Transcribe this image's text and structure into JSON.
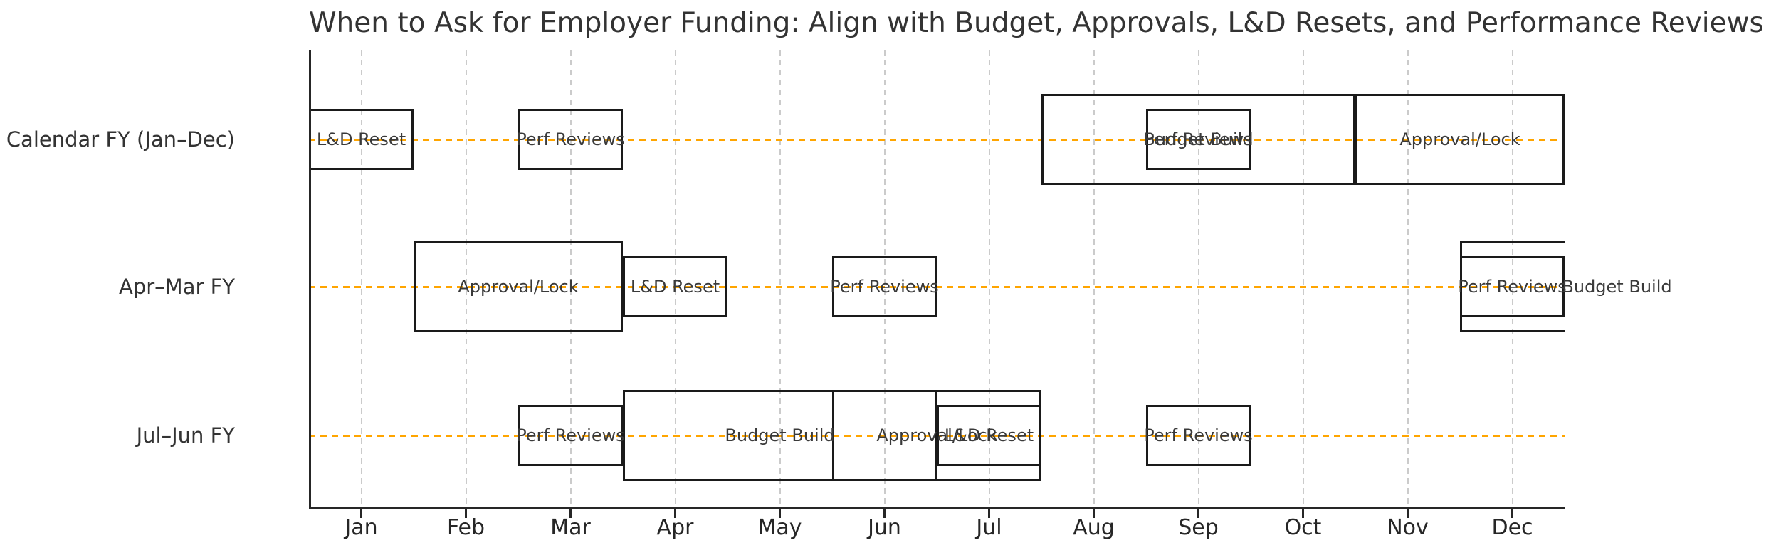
{
  "chart_data": {
    "type": "bar",
    "subtype": "gantt-timeline",
    "title": "When to Ask for Employer Funding: Align with Budget, Approvals, L&D Resets, and Performance Reviews",
    "xlim": [
      0,
      12
    ],
    "x_tick_labels": [
      "Jan",
      "Feb",
      "Mar",
      "Apr",
      "May",
      "Jun",
      "Jul",
      "Aug",
      "Sep",
      "Oct",
      "Nov",
      "Dec"
    ],
    "grid": "vertical dashed line at each month center",
    "row_guides": "horizontal orange dashed line across each row",
    "legend": "none",
    "rows": [
      {
        "label": "Calendar FY (Jan–Dec)",
        "bars": [
          {
            "label": "L&D Reset",
            "start_month": 0,
            "end_month": 1,
            "size": "small"
          },
          {
            "label": "Perf Reviews",
            "start_month": 2,
            "end_month": 3,
            "size": "small"
          },
          {
            "label": "Budget Build",
            "start_month": 7,
            "end_month": 10,
            "size": "large"
          },
          {
            "label": "Perf Reviews",
            "start_month": 8,
            "end_month": 9,
            "size": "small"
          },
          {
            "label": "Approval/Lock",
            "start_month": 10,
            "end_month": 12,
            "size": "large"
          }
        ]
      },
      {
        "label": "Apr–Mar FY",
        "bars": [
          {
            "label": "Approval/Lock",
            "start_month": 1,
            "end_month": 3,
            "size": "large"
          },
          {
            "label": "L&D Reset",
            "start_month": 3,
            "end_month": 4,
            "size": "small"
          },
          {
            "label": "Perf Reviews",
            "start_month": 5,
            "end_month": 6,
            "size": "small"
          },
          {
            "label": "Budget Build",
            "start_month": 11,
            "end_month": 14,
            "size": "large",
            "clipped": true
          },
          {
            "label": "Perf Reviews",
            "start_month": 11,
            "end_month": 12,
            "size": "small"
          }
        ]
      },
      {
        "label": "Jul–Jun FY",
        "bars": [
          {
            "label": "Perf Reviews",
            "start_month": 2,
            "end_month": 3,
            "size": "small"
          },
          {
            "label": "Budget Build",
            "start_month": 3,
            "end_month": 6,
            "size": "large"
          },
          {
            "label": "Approval/Lock",
            "start_month": 5,
            "end_month": 7,
            "size": "large"
          },
          {
            "label": "L&D Reset",
            "start_month": 6,
            "end_month": 7,
            "size": "small"
          },
          {
            "label": "Perf Reviews",
            "start_month": 8,
            "end_month": 9,
            "size": "small"
          }
        ]
      }
    ],
    "colors": {
      "background": "#ffffff",
      "bar_edge": "#1a1a1a",
      "bar_fill": "transparent",
      "bar_label_text": "#3a3a3a",
      "row_guide": "#ffa500",
      "gridline": "#cbcbcb",
      "axis": "#262626",
      "title_text": "#333333"
    }
  }
}
